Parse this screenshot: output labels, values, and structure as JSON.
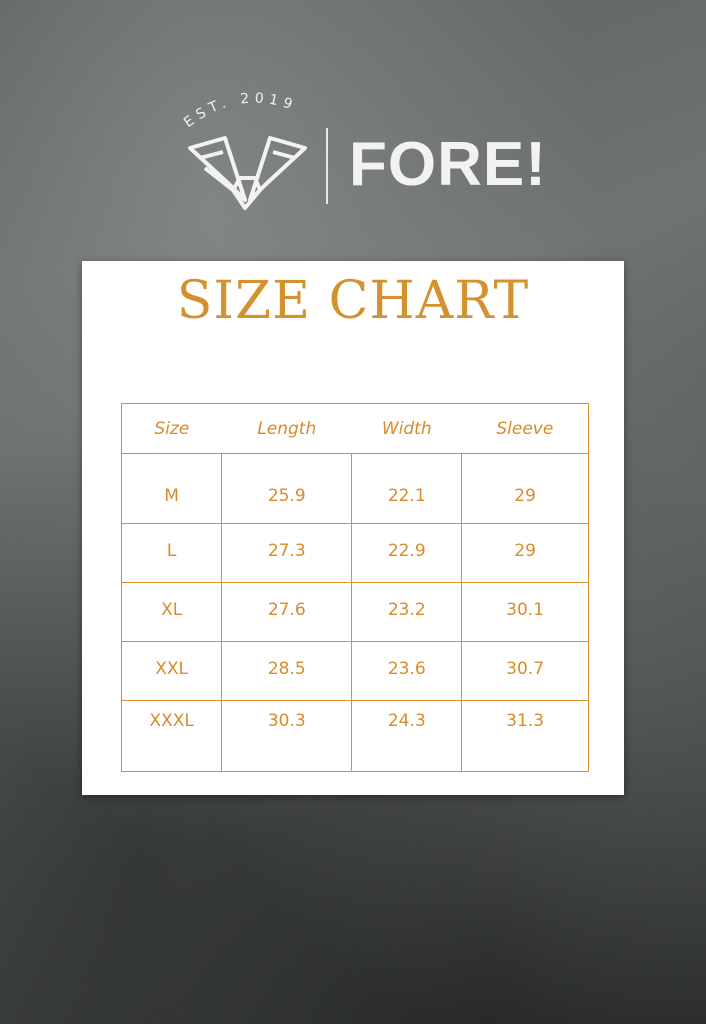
{
  "brand": {
    "name": "FORE!",
    "established": "EST. 2019"
  },
  "title": "SIZE CHART",
  "colors": {
    "accent": "#d98a2a",
    "card": "#ffffff",
    "logo": "#f2f2f2"
  },
  "table": {
    "headers": [
      "Size",
      "Length",
      "Width",
      "Sleeve"
    ],
    "rows": [
      [
        "M",
        "25.9",
        "22.1",
        "29"
      ],
      [
        "L",
        "27.3",
        "22.9",
        "29"
      ],
      [
        "XL",
        "27.6",
        "23.2",
        "30.1"
      ],
      [
        "XXL",
        "28.5",
        "23.6",
        "30.7"
      ],
      [
        "XXXL",
        "30.3",
        "24.3",
        "31.3"
      ]
    ]
  }
}
